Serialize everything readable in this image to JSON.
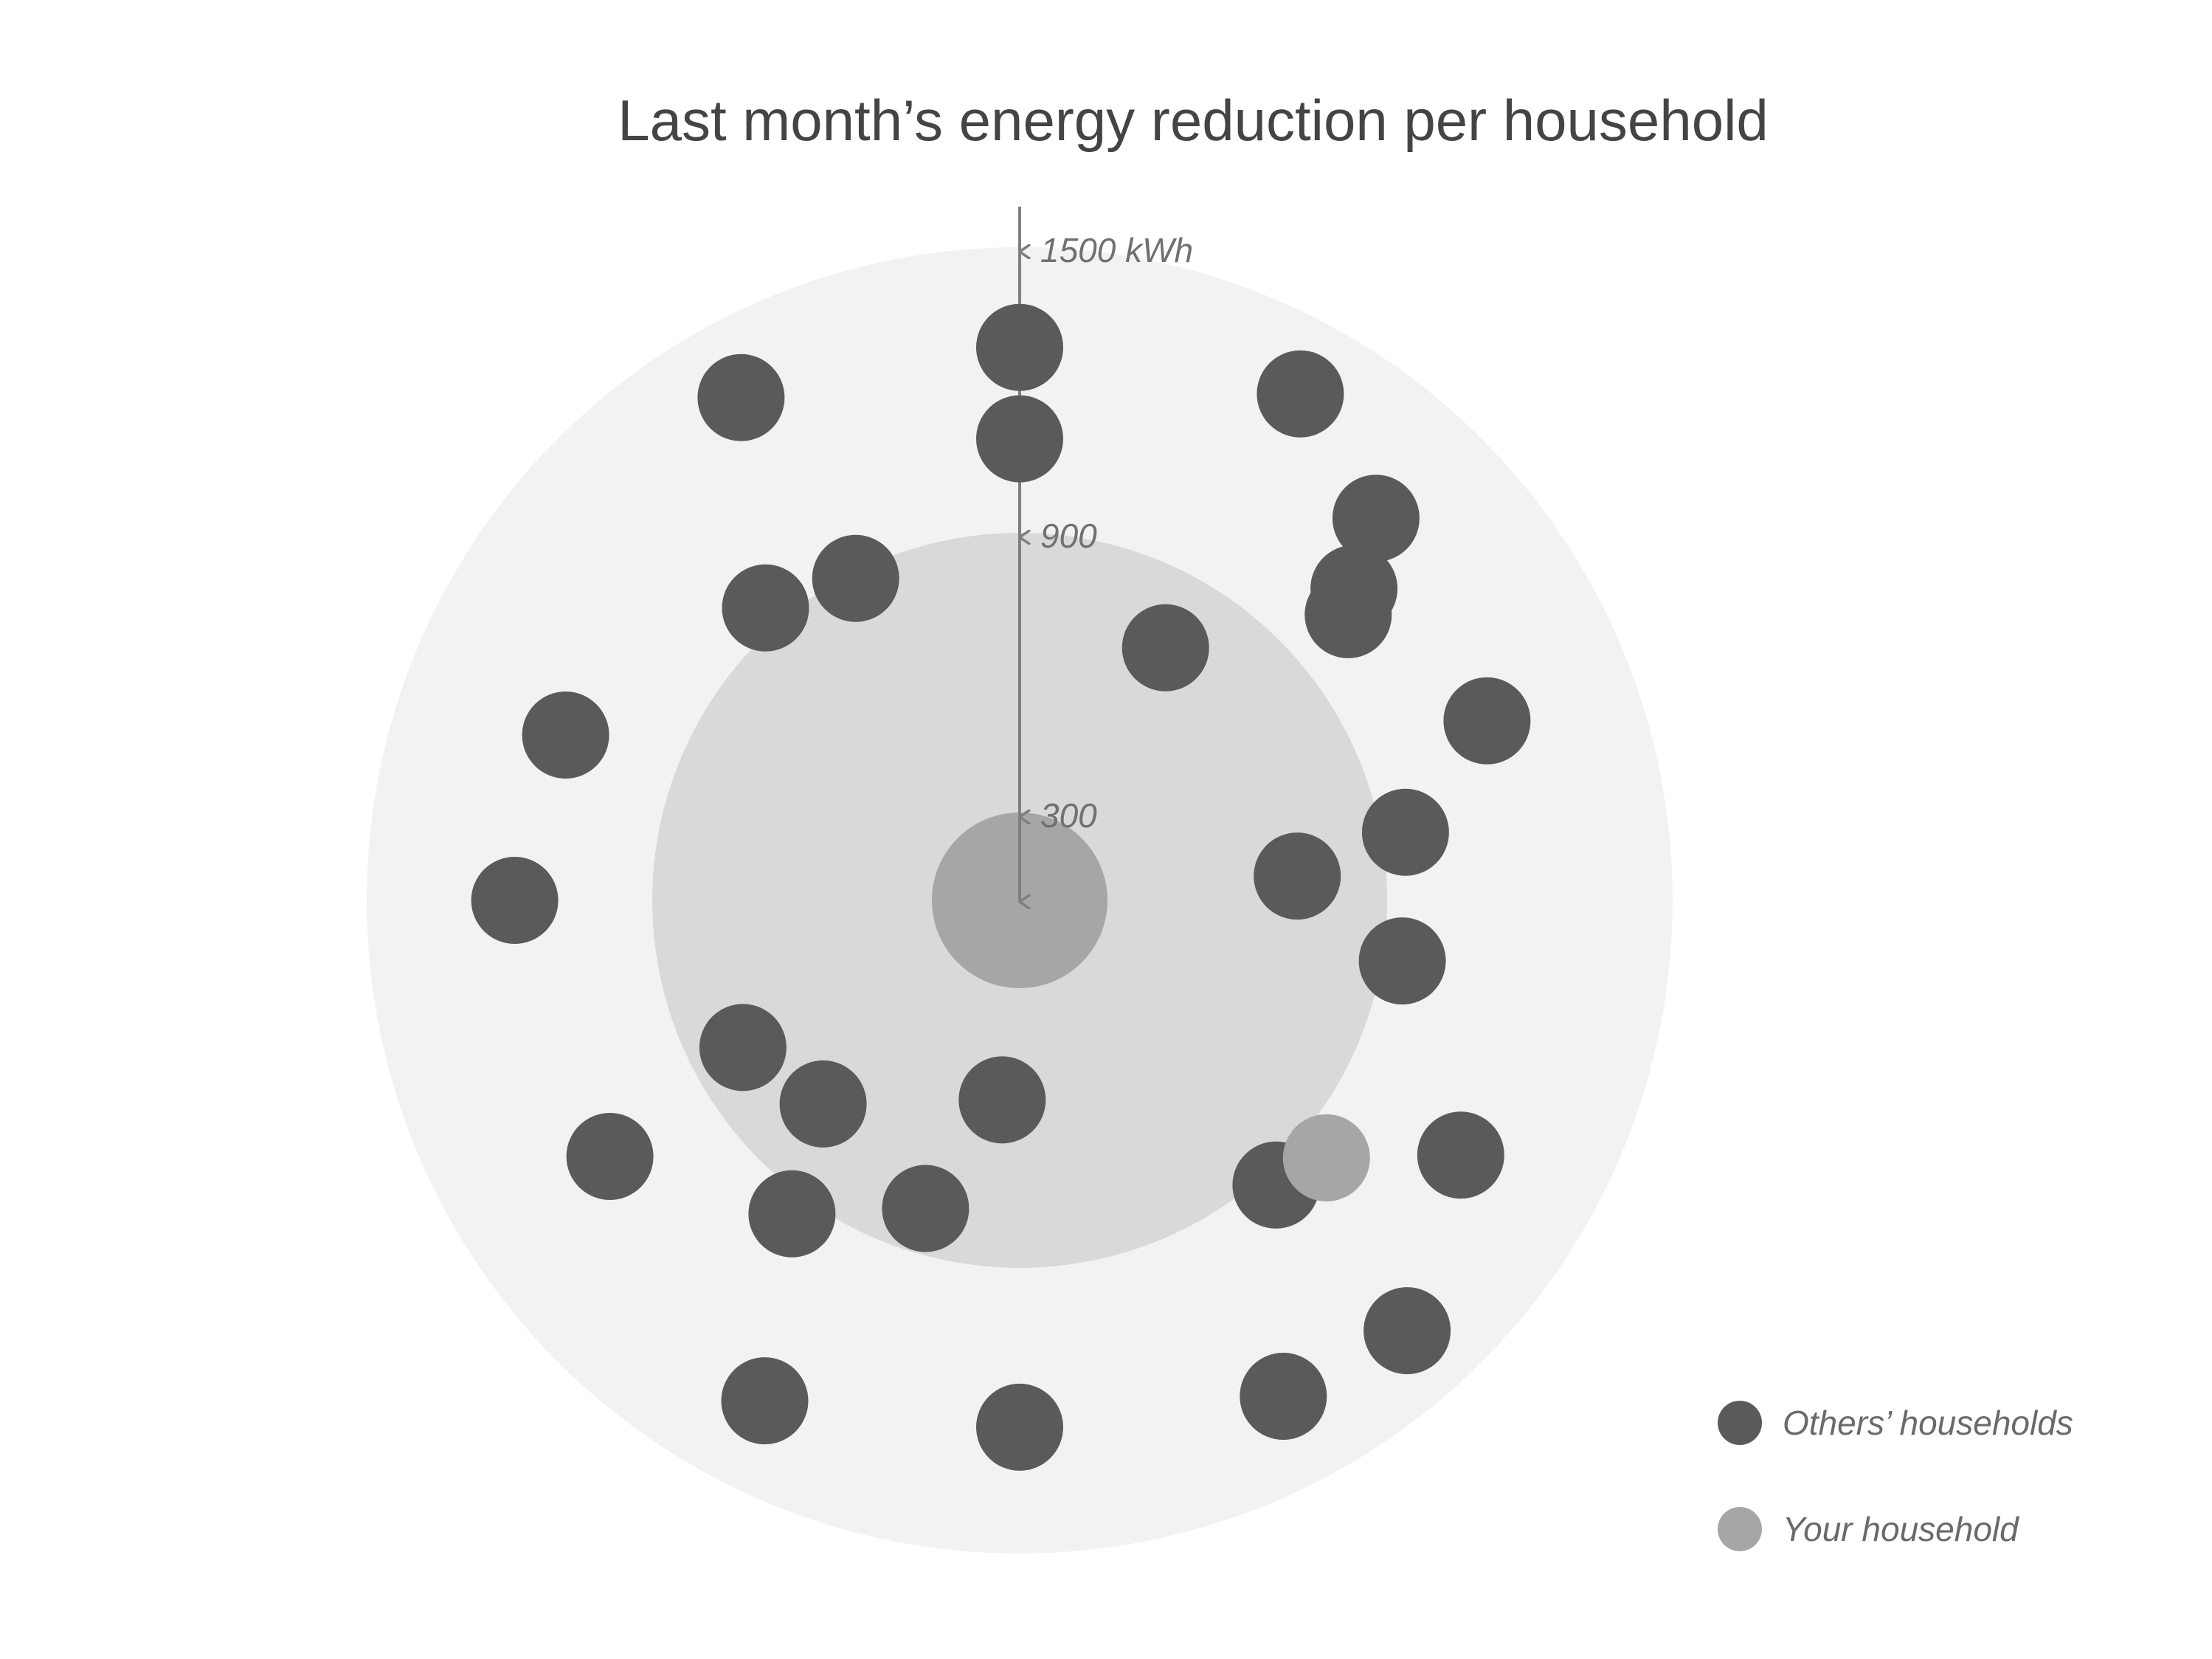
{
  "chart_data": {
    "type": "scatter",
    "title": "Last month’s energy reduction per household",
    "radial_axis": {
      "unit": "kWh",
      "ticks": [
        {
          "value": 1500,
          "label": "1500 kWh"
        },
        {
          "value": 900,
          "label": "900"
        },
        {
          "value": 300,
          "label": "300"
        }
      ],
      "direction": "inward",
      "rings": [
        1500,
        900,
        300
      ]
    },
    "legend": {
      "placement": "bottom-right",
      "items": [
        {
          "label": "Others’ households",
          "color": "#5a5a5a"
        },
        {
          "label": "Your household",
          "color": "#a6a6a6"
        }
      ]
    },
    "colors": {
      "outer_ring": "#f2f2f2",
      "middle_ring": "#d9d9d9",
      "inner_ring": "#a6a6a6",
      "axis": "#7f7f7f",
      "others": "#5a5a5a",
      "yours": "#a6a6a6"
    },
    "series": [
      {
        "name": "Others’ households",
        "points": [
          {
            "angle_deg": 160,
            "value": 1110
          },
          {
            "angle_deg": 212,
            "value": 1110
          },
          {
            "angle_deg": 131,
            "value": 890
          },
          {
            "angle_deg": 234,
            "value": 890
          },
          {
            "angle_deg": 298,
            "value": 1290
          },
          {
            "angle_deg": 270,
            "value": 1210
          },
          {
            "angle_deg": 243,
            "value": 1290
          },
          {
            "angle_deg": 61,
            "value": 1330
          },
          {
            "angle_deg": 90,
            "value": 1270
          },
          {
            "angle_deg": 119,
            "value": 1320
          },
          {
            "angle_deg": 312,
            "value": 880
          },
          {
            "angle_deg": 330,
            "value": 1170
          },
          {
            "angle_deg": 41,
            "value": 1000
          },
          {
            "angle_deg": 21,
            "value": 1150
          },
          {
            "angle_deg": 60,
            "value": 670
          },
          {
            "angle_deg": 90,
            "value": 1060
          },
          {
            "angle_deg": 117,
            "value": 830
          },
          {
            "angle_deg": 47,
            "value": 1200
          },
          {
            "angle_deg": 10,
            "value": 900
          },
          {
            "angle_deg": 351,
            "value": 890
          },
          {
            "angle_deg": 312,
            "value": 1330
          },
          {
            "angle_deg": 208,
            "value": 720
          },
          {
            "angle_deg": 226,
            "value": 650
          },
          {
            "angle_deg": 253,
            "value": 740
          },
          {
            "angle_deg": 5,
            "value": 640
          },
          {
            "angle_deg": 43,
            "value": 1050
          },
          {
            "angle_deg": 180,
            "value": 1160
          },
          {
            "angle_deg": 265,
            "value": 460
          }
        ]
      },
      {
        "name": "Your household",
        "points": [
          {
            "angle_deg": 320,
            "value": 920
          }
        ]
      }
    ]
  }
}
